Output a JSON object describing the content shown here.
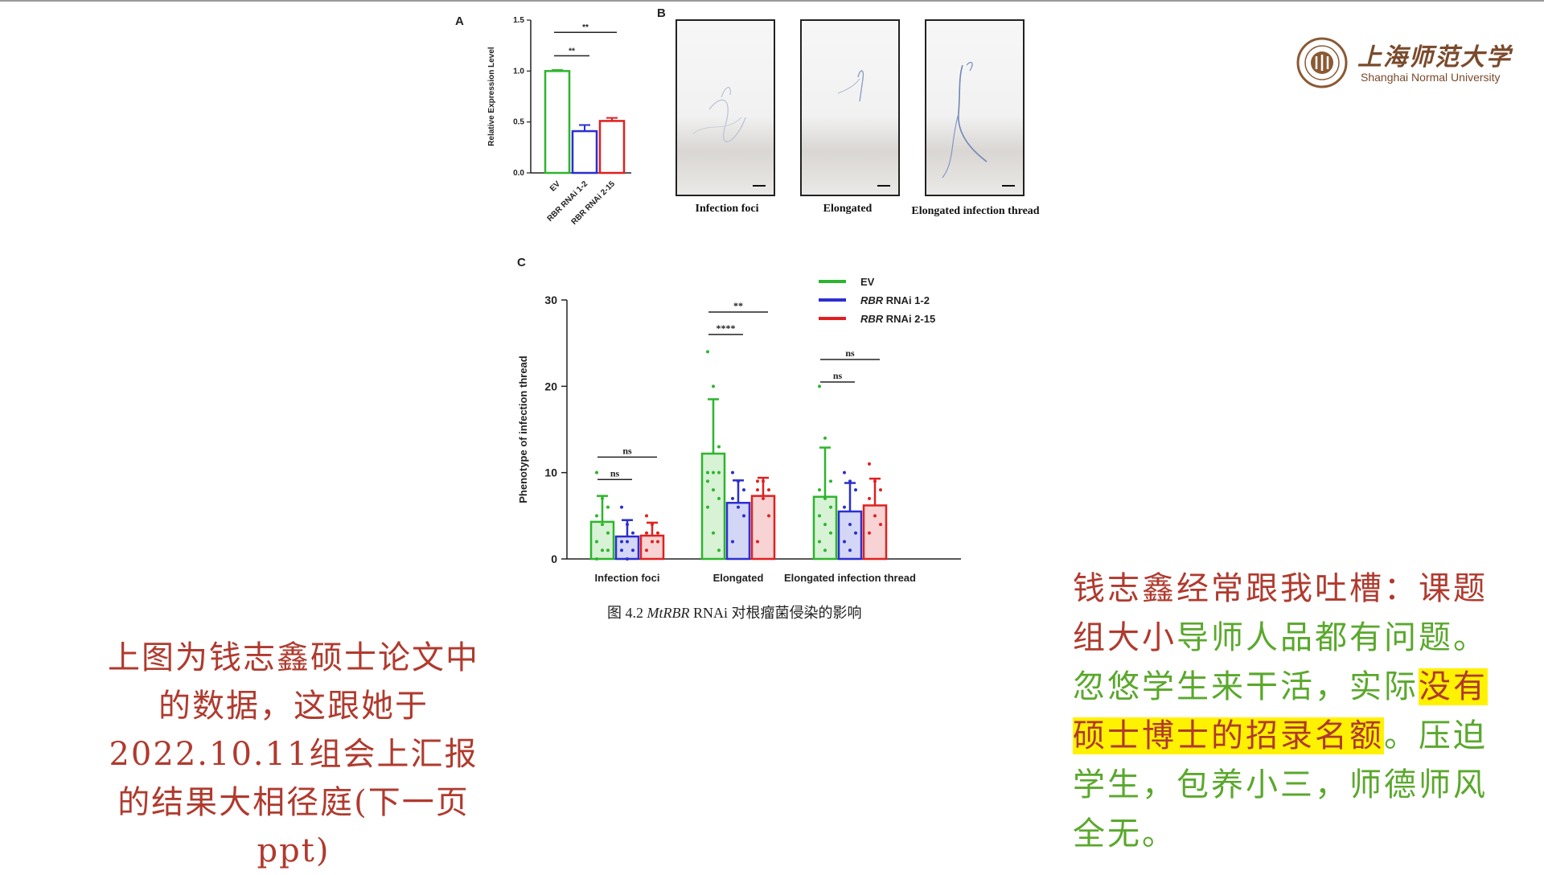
{
  "panel_labels": {
    "a": "A",
    "b": "B",
    "c": "C"
  },
  "micrographs": [
    {
      "caption": "Infection foci"
    },
    {
      "caption": "Elongated"
    },
    {
      "caption": "Elongated infection thread"
    }
  ],
  "figure_caption": {
    "prefix": "图 4.2 ",
    "gene": "MtRBR",
    "suffix": " RNAi 对根瘤菌侵染的影响"
  },
  "logo": {
    "cn": "上海师范大学",
    "en": "Shanghai Normal University",
    "seal_text": "上海师范大学"
  },
  "left_note": {
    "text": "上图为钱志鑫硕士论文中的数据，这跟她于2022.10.11组会上汇报的结果大相径庭(下一页ppt)",
    "color": "#b03a2e"
  },
  "right_note": {
    "line_red": "钱志鑫经常跟我吐槽：课题组大小",
    "line_green1": "导师人品都有问题。忽悠学生来干活，实际",
    "highlight": "没有硕士博士的招录名额",
    "line_green2": "。压迫学生，包养小三，师德师风全无。",
    "red_color": "#b03a2e",
    "green_color": "#5aa82c",
    "highlight_color": "#fff200"
  },
  "colors": {
    "ev": "#2db52d",
    "rnai12": "#2a2fd0",
    "rnai215": "#e02020"
  },
  "chart_data": [
    {
      "type": "bar",
      "panel": "A",
      "ylabel": "Relative Expression Level",
      "xlabel": "",
      "categories": [
        "EV",
        "RBR RNAi 1-2",
        "RBR RNAi 2-15"
      ],
      "values": [
        1.0,
        0.41,
        0.51
      ],
      "errors": [
        0.01,
        0.06,
        0.03
      ],
      "ylim": [
        0,
        1.5
      ],
      "yticks": [
        "0.0",
        "0.5",
        "1.0",
        "1.5"
      ],
      "significance": [
        {
          "from": 0,
          "to": 1,
          "label": "**"
        },
        {
          "from": 0,
          "to": 2,
          "label": "**"
        }
      ]
    },
    {
      "type": "bar",
      "panel": "C",
      "ylabel": "Phenotype of infection thread",
      "xlabel": "",
      "categories": [
        "Infection foci",
        "Elongated",
        "Elongated infection thread"
      ],
      "ylim": [
        0,
        30
      ],
      "yticks": [
        "0",
        "10",
        "20",
        "30"
      ],
      "legend_position": "top-right",
      "legend": [
        {
          "italic": "RBR",
          "label": "EV"
        },
        {
          "italic": "RBR",
          "label": " RNAi  1-2"
        },
        {
          "italic": "RBR",
          "label": " RNAi  2-15"
        }
      ],
      "series": [
        {
          "name": "EV",
          "values": [
            4.3,
            12.2,
            7.2
          ],
          "errors": [
            3.0,
            6.3,
            5.7
          ]
        },
        {
          "name": "RBR RNAi 1-2",
          "values": [
            2.6,
            6.5,
            5.5
          ],
          "errors": [
            1.9,
            2.6,
            3.3
          ]
        },
        {
          "name": "RBR RNAi 2-15",
          "values": [
            2.7,
            7.3,
            6.2
          ],
          "errors": [
            1.5,
            2.1,
            3.1
          ]
        }
      ],
      "points": [
        [
          [
            10,
            7,
            6,
            5,
            4,
            3,
            2,
            1,
            1,
            0
          ],
          [
            24,
            20,
            13,
            10,
            10,
            10,
            9,
            8,
            7,
            6,
            3,
            1
          ],
          [
            20,
            14,
            9,
            8,
            7,
            6,
            5,
            4,
            3,
            2,
            1
          ]
        ],
        [
          [
            6,
            4,
            3,
            2,
            2,
            1,
            1,
            0
          ],
          [
            10,
            9,
            8,
            7,
            6,
            5,
            2
          ],
          [
            10,
            9,
            8,
            6,
            4,
            3,
            2,
            1
          ]
        ],
        [
          [
            5,
            4,
            3,
            3,
            2,
            2,
            1
          ],
          [
            9,
            9,
            8,
            8,
            7,
            5,
            2
          ],
          [
            11,
            9,
            8,
            7,
            5,
            4,
            3
          ]
        ]
      ],
      "significance": [
        {
          "group": 0,
          "from": 0,
          "to": 1,
          "label": "ns"
        },
        {
          "group": 0,
          "from": 0,
          "to": 2,
          "label": "ns"
        },
        {
          "group": 1,
          "from": 0,
          "to": 1,
          "label": "****"
        },
        {
          "group": 1,
          "from": 0,
          "to": 2,
          "label": "**"
        },
        {
          "group": 2,
          "from": 0,
          "to": 1,
          "label": "ns"
        },
        {
          "group": 2,
          "from": 0,
          "to": 2,
          "label": "ns"
        }
      ]
    }
  ]
}
